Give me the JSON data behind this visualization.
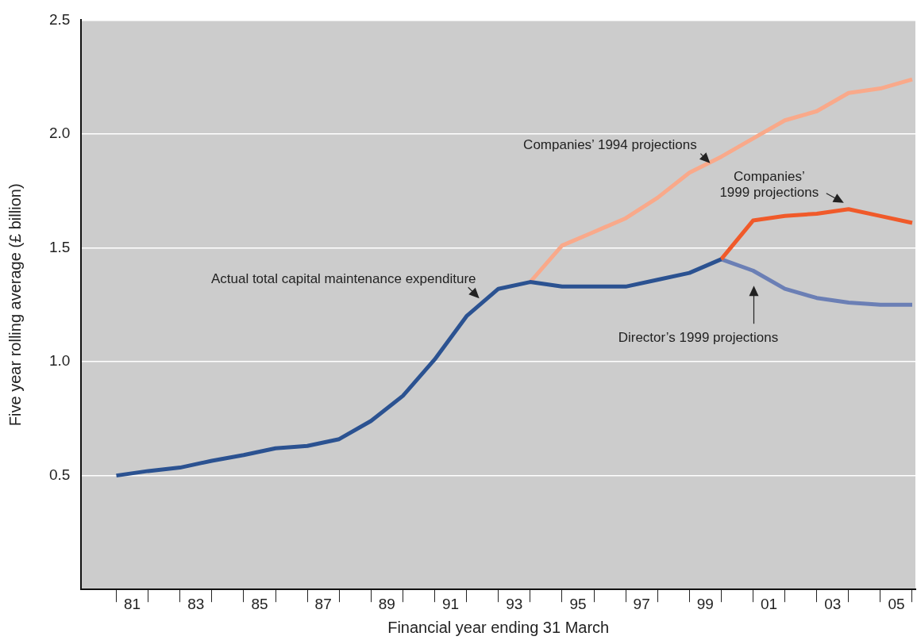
{
  "chart_data": {
    "type": "line",
    "xlabel": "Financial year ending 31 March",
    "ylabel": "Five year rolling average (£ billion)",
    "xlim": [
      1979.4,
      2005.6
    ],
    "xticks": [
      {
        "value": 1980.5,
        "label": null
      },
      {
        "value": 1981,
        "label": "81"
      },
      {
        "value": 1981.5,
        "label": null
      },
      {
        "value": 1982.5,
        "label": null
      },
      {
        "value": 1983,
        "label": "83"
      },
      {
        "value": 1983.5,
        "label": null
      },
      {
        "value": 1984.5,
        "label": null
      },
      {
        "value": 1985,
        "label": "85"
      },
      {
        "value": 1985.5,
        "label": null
      },
      {
        "value": 1986.5,
        "label": null
      },
      {
        "value": 1987,
        "label": "87"
      },
      {
        "value": 1987.5,
        "label": null
      },
      {
        "value": 1988.5,
        "label": null
      },
      {
        "value": 1989,
        "label": "89"
      },
      {
        "value": 1989.5,
        "label": null
      },
      {
        "value": 1990.5,
        "label": null
      },
      {
        "value": 1991,
        "label": "91"
      },
      {
        "value": 1991.5,
        "label": null
      },
      {
        "value": 1992.5,
        "label": null
      },
      {
        "value": 1993,
        "label": "93"
      },
      {
        "value": 1993.5,
        "label": null
      },
      {
        "value": 1994.5,
        "label": null
      },
      {
        "value": 1995,
        "label": "95"
      },
      {
        "value": 1995.5,
        "label": null
      },
      {
        "value": 1996.5,
        "label": null
      },
      {
        "value": 1997,
        "label": "97"
      },
      {
        "value": 1997.5,
        "label": null
      },
      {
        "value": 1998.5,
        "label": null
      },
      {
        "value": 1999,
        "label": "99"
      },
      {
        "value": 1999.5,
        "label": null
      },
      {
        "value": 2000.5,
        "label": null
      },
      {
        "value": 2001,
        "label": "01"
      },
      {
        "value": 2001.5,
        "label": null
      },
      {
        "value": 2002.5,
        "label": null
      },
      {
        "value": 2003,
        "label": "03"
      },
      {
        "value": 2003.5,
        "label": null
      },
      {
        "value": 2004.5,
        "label": null
      },
      {
        "value": 2005,
        "label": "05"
      },
      {
        "value": 2005.5,
        "label": null
      }
    ],
    "ylim": [
      0,
      2.5
    ],
    "yticks": [
      {
        "value": 0.5,
        "label": "0.5"
      },
      {
        "value": 1,
        "label": "1.0"
      },
      {
        "value": 1.5,
        "label": "1.5"
      },
      {
        "value": 2,
        "label": "2.0"
      },
      {
        "value": 2.5,
        "label": "2.5"
      }
    ],
    "grid": "y",
    "legend": false,
    "marker": "none",
    "line_style": "solid",
    "series": [
      {
        "name": "Actual total capital maintenance expenditure",
        "color": "#2b5291",
        "x": [
          1980.5,
          1981.5,
          1982.5,
          1983.5,
          1984.5,
          1985.5,
          1986.5,
          1987.5,
          1988.5,
          1989.5,
          1990.5,
          1991.5,
          1992.5,
          1993.5,
          1994.5,
          1995.5,
          1996.5,
          1997.5,
          1998.5,
          1999.5
        ],
        "values": [
          0.5,
          0.52,
          0.535,
          0.565,
          0.59,
          0.62,
          0.63,
          0.66,
          0.74,
          0.85,
          1.01,
          1.2,
          1.32,
          1.35,
          1.33,
          1.33,
          1.33,
          1.36,
          1.39,
          1.45
        ]
      },
      {
        "name": "Companies’ 1999 projections",
        "color": "#f05a2a",
        "x": [
          1999.5,
          2000.5,
          2001.5,
          2002.5,
          2003.5,
          2004.5,
          2005.5
        ],
        "values": [
          1.45,
          1.62,
          1.64,
          1.65,
          1.67,
          1.64,
          1.61
        ]
      },
      {
        "name": "Companies’ 1994 projections",
        "color": "#f9a98a",
        "x": [
          1993.5,
          1994.5,
          1995.5,
          1996.5,
          1997.5,
          1998.5,
          1999.5,
          2000.5,
          2001.5,
          2002.5,
          2003.5,
          2004.5,
          2005.5
        ],
        "values": [
          1.35,
          1.51,
          1.57,
          1.63,
          1.72,
          1.83,
          1.9,
          1.98,
          2.06,
          2.1,
          2.18,
          2.2,
          2.24
        ]
      },
      {
        "name": "Director’s 1999 projections",
        "color": "#6b7fb5",
        "x": [
          1999.5,
          2000.5,
          2001.5,
          2002.5,
          2003.5,
          2004.5,
          2005.5
        ],
        "values": [
          1.45,
          1.4,
          1.32,
          1.28,
          1.26,
          1.25,
          1.25
        ]
      }
    ]
  }
}
